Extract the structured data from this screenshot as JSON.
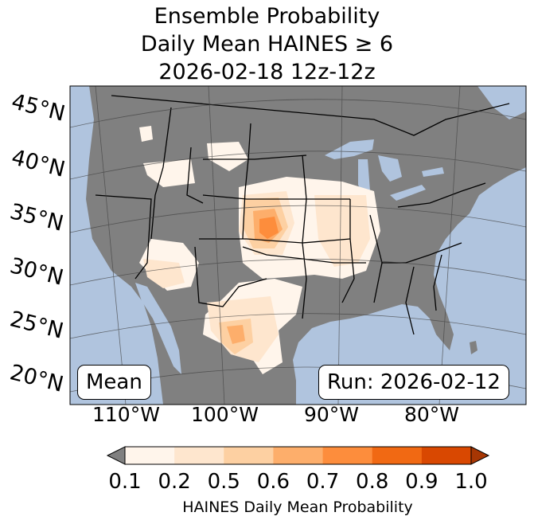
{
  "title_lines": [
    "Ensemble Probability",
    "Daily Mean HAINES ≥ 6",
    "2026-02-18 12z-12z"
  ],
  "lat_labels": [
    "45°N",
    "40°N",
    "35°N",
    "30°N",
    "25°N",
    "20°N"
  ],
  "lon_labels": [
    "110°W",
    "100°W",
    "90°W",
    "80°W"
  ],
  "stat_box": "Mean",
  "run_box": "Run: 2026-02-12",
  "colorbar": {
    "ticks": [
      "0.1",
      "0.2",
      "0.5",
      "0.6",
      "0.7",
      "0.8",
      "0.9",
      "1.0"
    ],
    "colors": [
      "#fff5eb",
      "#fee6ce",
      "#fdd0a2",
      "#fdae6b",
      "#fd8d3c",
      "#f16913",
      "#d94801"
    ],
    "under_color": "#808080",
    "over_color": "#a63603",
    "label": "HAINES Daily Mean Probability"
  },
  "colors": {
    "ocean": "#b0c4de",
    "land": "#808080",
    "border": "#000000",
    "grid": "#404040"
  }
}
